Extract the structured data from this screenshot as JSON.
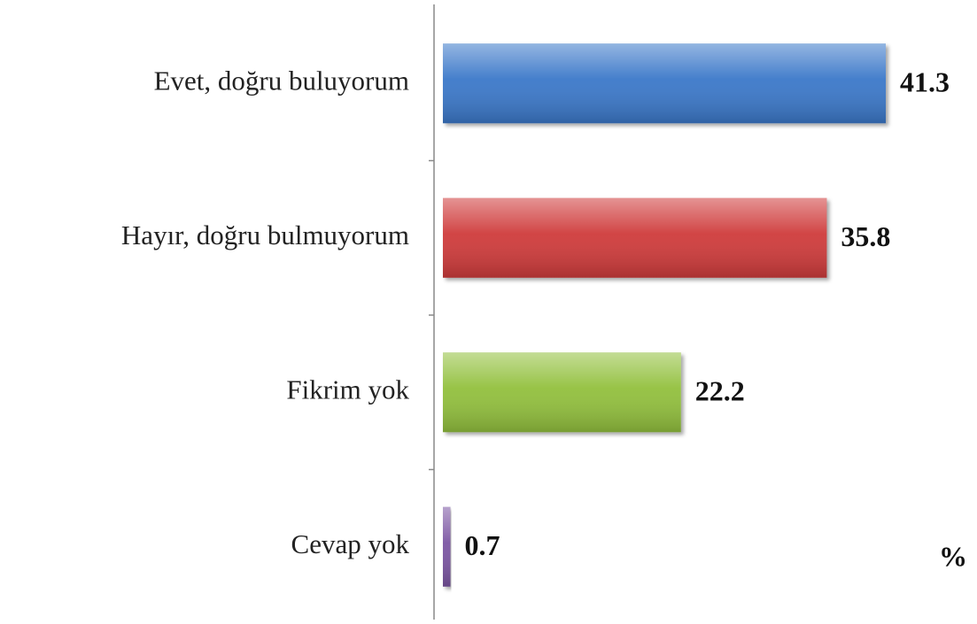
{
  "chart_data": {
    "type": "barh",
    "categories": [
      "Evet, doğru buluyorum",
      "Hayır, doğru bulmuyorum",
      "Fikrim yok",
      "Cevap yok"
    ],
    "values": [
      41.3,
      35.8,
      22.2,
      0.7
    ],
    "colors": [
      "#3b78c9",
      "#cf3b3b",
      "#92c03e",
      "#7b56a3"
    ],
    "axis_label": "%"
  }
}
